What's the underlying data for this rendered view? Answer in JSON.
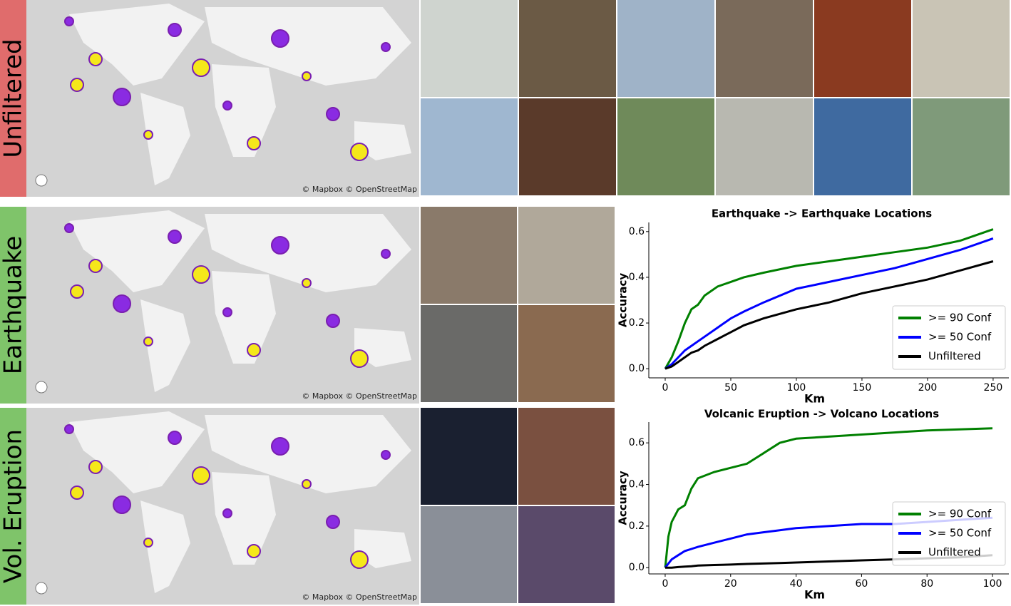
{
  "rows": [
    {
      "label": "Unfiltered",
      "map_attribution": "© Mapbox © OpenStreetMap"
    },
    {
      "label": "Earthquake",
      "map_attribution": "© Mapbox © OpenStreetMap"
    },
    {
      "label": "Vol. Eruption",
      "map_attribution": "© Mapbox © OpenStreetMap"
    }
  ],
  "chart_data": [
    {
      "type": "line",
      "title": "Earthquake -> Earthquake Locations",
      "xlabel": "Km",
      "ylabel": "Accuracy",
      "x": [
        0,
        5,
        10,
        15,
        20,
        25,
        30,
        40,
        50,
        60,
        75,
        100,
        125,
        150,
        175,
        200,
        225,
        250
      ],
      "xlim": [
        -12.5,
        262
      ],
      "xticks": [
        0,
        50,
        100,
        150,
        200,
        250
      ],
      "ylim": [
        -0.04,
        0.64
      ],
      "yticks": [
        {
          "value": 0,
          "label": "0.0"
        },
        0.2,
        0.4,
        0.6
      ],
      "legend": "lower right",
      "series": [
        {
          "name": ">= 90 Conf",
          "color": "#008000",
          "values": [
            0,
            0.05,
            0.12,
            0.2,
            0.26,
            0.28,
            0.32,
            0.36,
            0.38,
            0.4,
            0.42,
            0.45,
            0.47,
            0.49,
            0.51,
            0.53,
            0.56,
            0.61
          ]
        },
        {
          "name": ">= 50 Conf",
          "color": "#0000ff",
          "values": [
            0,
            0.02,
            0.05,
            0.08,
            0.1,
            0.12,
            0.14,
            0.18,
            0.22,
            0.25,
            0.29,
            0.35,
            0.38,
            0.41,
            0.44,
            0.48,
            0.52,
            0.57
          ]
        },
        {
          "name": "Unfiltered",
          "color": "#000000",
          "values": [
            0,
            0.01,
            0.03,
            0.05,
            0.07,
            0.08,
            0.1,
            0.13,
            0.16,
            0.19,
            0.22,
            0.26,
            0.29,
            0.33,
            0.36,
            0.39,
            0.43,
            0.47
          ]
        }
      ]
    },
    {
      "type": "line",
      "title": "Volcanic Eruption -> Volcano Locations",
      "xlabel": "Km",
      "ylabel": "Accuracy",
      "x": [
        0,
        1,
        2,
        4,
        6,
        8,
        10,
        15,
        20,
        25,
        30,
        35,
        40,
        50,
        60,
        70,
        80,
        90,
        100
      ],
      "xlim": [
        -5,
        105
      ],
      "xticks": [
        0,
        20,
        40,
        60,
        80,
        100
      ],
      "ylim": [
        -0.03,
        0.7
      ],
      "yticks": [
        {
          "value": 0,
          "label": "0.0"
        },
        0.2,
        0.4,
        0.6
      ],
      "legend": "lower right",
      "series": [
        {
          "name": ">= 90 Conf",
          "color": "#008000",
          "values": [
            0,
            0.15,
            0.22,
            0.28,
            0.3,
            0.38,
            0.43,
            0.46,
            0.48,
            0.5,
            0.55,
            0.6,
            0.62,
            0.63,
            0.64,
            0.65,
            0.66,
            0.665,
            0.67
          ]
        },
        {
          "name": ">= 50 Conf",
          "color": "#0000ff",
          "values": [
            0,
            0.02,
            0.04,
            0.06,
            0.08,
            0.09,
            0.1,
            0.12,
            0.14,
            0.16,
            0.17,
            0.18,
            0.19,
            0.2,
            0.21,
            0.21,
            0.22,
            0.23,
            0.24
          ]
        },
        {
          "name": "Unfiltered",
          "color": "#000000",
          "values": [
            0,
            0,
            0,
            0.003,
            0.005,
            0.007,
            0.01,
            0.013,
            0.015,
            0.018,
            0.02,
            0.022,
            0.025,
            0.03,
            0.035,
            0.04,
            0.045,
            0.05,
            0.06
          ]
        }
      ]
    }
  ]
}
